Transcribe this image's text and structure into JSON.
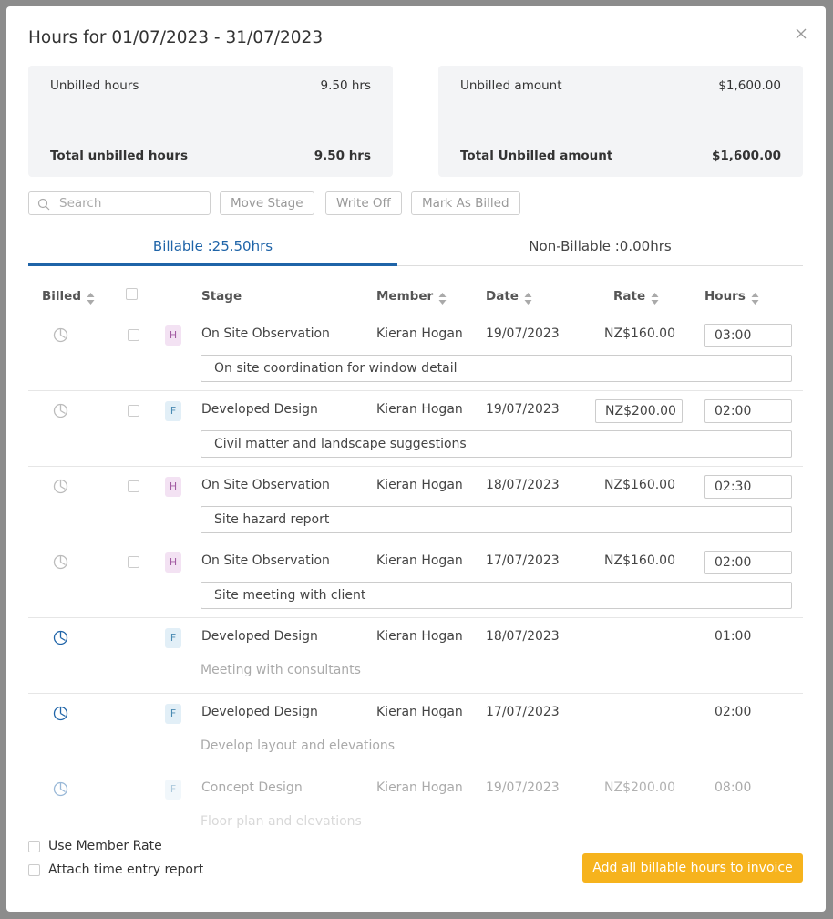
{
  "header": {
    "title": "Hours for 01/07/2023 - 31/07/2023"
  },
  "summary": [
    {
      "label": "Unbilled hours",
      "value": "9.50 hrs",
      "total_label": "Total unbilled hours",
      "total_value": "9.50 hrs"
    },
    {
      "label": "Unbilled amount",
      "value": "$1,600.00",
      "total_label": "Total Unbilled amount",
      "total_value": "$1,600.00"
    }
  ],
  "toolbar": {
    "search_placeholder": "Search",
    "buttons": [
      "Move Stage",
      "Write Off",
      "Mark As Billed"
    ]
  },
  "tabs": [
    "Billable :25.50hrs",
    "Non-Billable :0.00hrs"
  ],
  "table": {
    "columns": [
      "Billed",
      "Stage",
      "Member",
      "Date",
      "Rate",
      "Hours"
    ],
    "rows": [
      {
        "billed": false,
        "badge": "H",
        "stage": "On Site Observation",
        "member": "Kieran Hogan",
        "date": "19/07/2023",
        "rate": "NZ$160.00",
        "hours": "03:00",
        "note": "On site coordination for window detail"
      },
      {
        "billed": false,
        "badge": "F",
        "stage": "Developed Design",
        "member": "Kieran Hogan",
        "date": "19/07/2023",
        "rate": "NZ$200.00",
        "rate_editable": true,
        "hours": "02:00",
        "note": "Civil matter and landscape suggestions"
      },
      {
        "billed": false,
        "badge": "H",
        "stage": "On Site Observation",
        "member": "Kieran Hogan",
        "date": "18/07/2023",
        "rate": "NZ$160.00",
        "hours": "02:30",
        "note": "Site hazard report"
      },
      {
        "billed": false,
        "badge": "H",
        "stage": "On Site Observation",
        "member": "Kieran Hogan",
        "date": "17/07/2023",
        "rate": "NZ$160.00",
        "hours": "02:00",
        "note": "Site meeting with client"
      },
      {
        "billed": true,
        "badge": "F",
        "stage": "Developed Design",
        "member": "Kieran Hogan",
        "date": "18/07/2023",
        "hours": "01:00",
        "note": "Meeting with consultants"
      },
      {
        "billed": true,
        "badge": "F",
        "stage": "Developed Design",
        "member": "Kieran Hogan",
        "date": "17/07/2023",
        "hours": "02:00",
        "note": "Develop layout and elevations"
      },
      {
        "billed": true,
        "faded": true,
        "badge": "F",
        "stage": "Concept Design",
        "member": "Kieran Hogan",
        "date": "19/07/2023",
        "rate": "NZ$200.00",
        "hours": "08:00",
        "note": "Floor plan and elevations"
      }
    ]
  },
  "footer": {
    "options": [
      "Use Member Rate",
      "Attach time entry report"
    ],
    "button": "Add all billable hours to invoice"
  }
}
